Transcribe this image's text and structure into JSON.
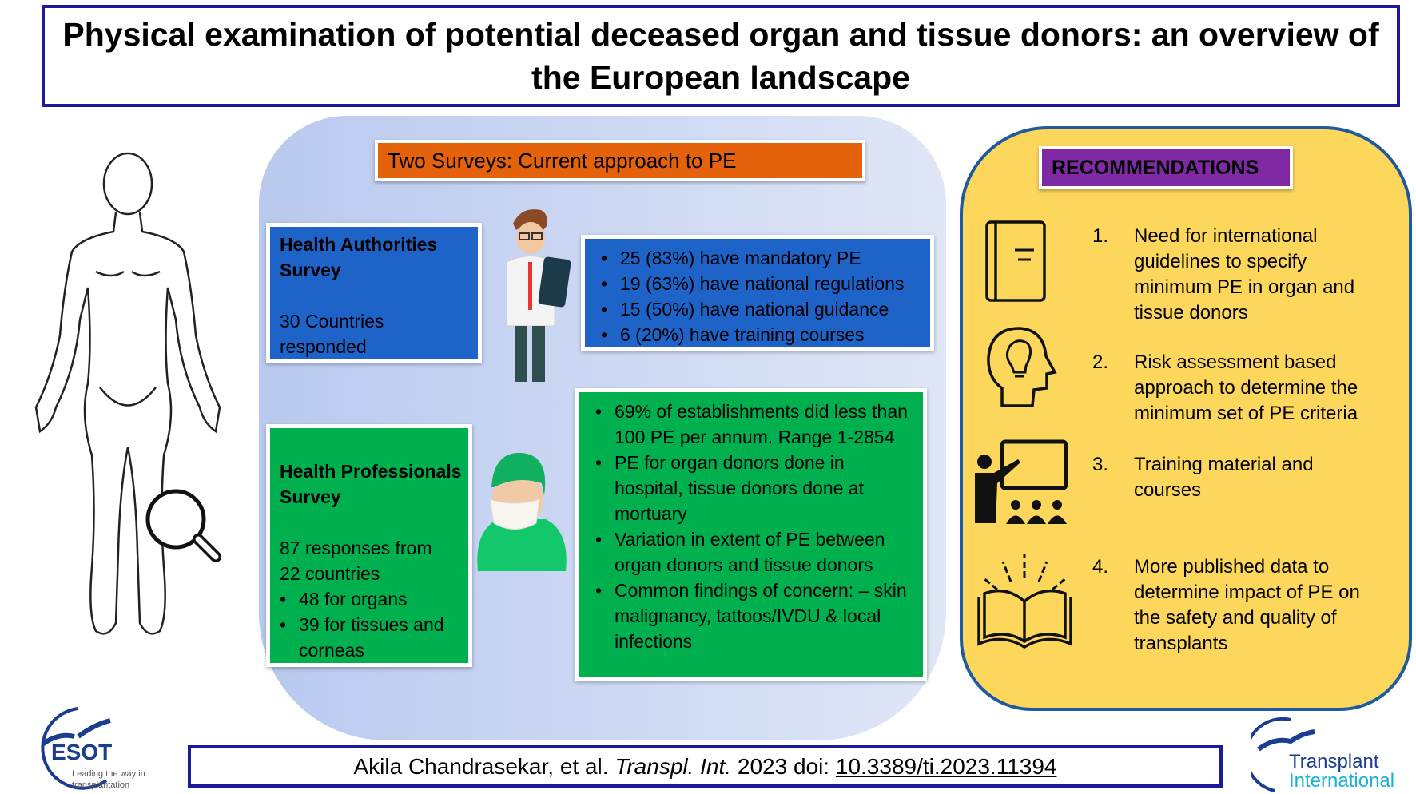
{
  "title": "Physical examination of potential deceased organ and tissue donors: an overview of the European landscape",
  "surveys": {
    "header": "Two Surveys: Current approach to PE",
    "authorities": {
      "title_line1": "Health Authorities",
      "title_line2": "Survey",
      "desc_line1": "30 Countries",
      "desc_line2": "responded",
      "stats": [
        "25 (83%) have mandatory PE",
        "19 (63%) have national regulations",
        "15 (50%) have national guidance",
        "6 (20%) have training courses"
      ]
    },
    "professionals": {
      "title_line1": "Health Professionals",
      "title_line2": "Survey",
      "desc_line1": "87 responses  from",
      "desc_line2": "22 countries",
      "breakdown": [
        "48 for organs",
        "39 for tissues and corneas"
      ],
      "findings": [
        "69% of establishments did less than 100 PE per annum. Range 1-2854",
        "PE for organ donors done in hospital, tissue donors done at mortuary",
        "Variation in extent of PE between organ donors and tissue donors",
        "Common findings of concern: – skin malignancy, tattoos/IVDU & local infections"
      ]
    }
  },
  "recommendations": {
    "header": "RECOMMENDATIONS",
    "items": [
      {
        "num": "1.",
        "text": "Need for international guidelines to specify minimum PE in organ and tissue donors",
        "icon": "book-icon"
      },
      {
        "num": "2.",
        "text": "Risk assessment based approach to determine the minimum set of PE criteria",
        "icon": "head-lightbulb-icon"
      },
      {
        "num": "3.",
        "text": "Training material and courses",
        "icon": "teacher-icon"
      },
      {
        "num": "4.",
        "text": "More published data to determine impact of PE on the safety and quality of transplants",
        "icon": "open-book-icon"
      }
    ]
  },
  "citation": {
    "authors": "Akila Chandrasekar, et al.",
    "journal": "Transpl. Int.",
    "year": "2023 doi:",
    "doi": "10.3389/ti.2023.11394"
  },
  "logos": {
    "esot": "ESOT",
    "esot_tagline": "Leading the way in transplantation",
    "ti_line1": "Transplant",
    "ti_line2": "International"
  },
  "colors": {
    "title_border": "#1a1a9a",
    "orange": "#e5620c",
    "blue": "#1e64c8",
    "green": "#00b04e",
    "yellow": "#fcd75c",
    "purple": "#7f2aa4"
  }
}
